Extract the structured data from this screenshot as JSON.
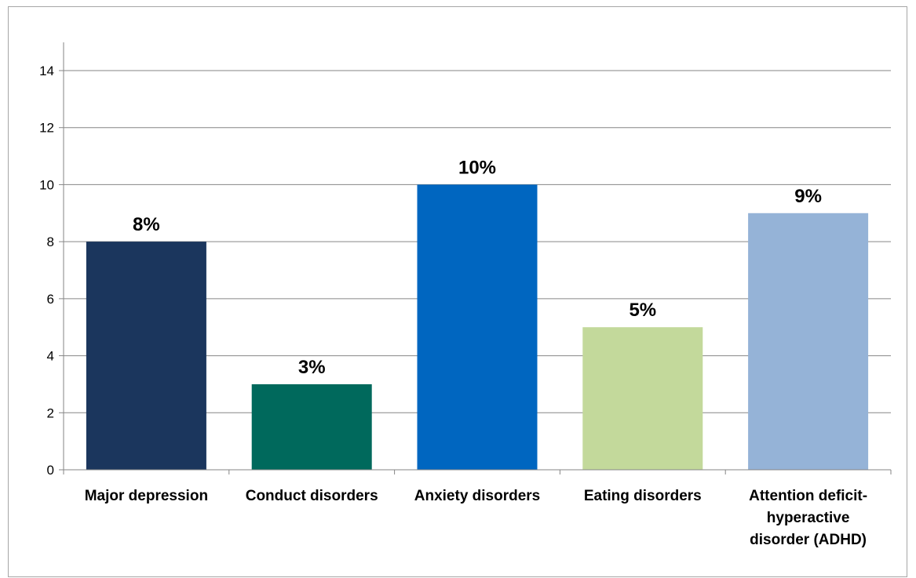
{
  "chart_data": {
    "type": "bar",
    "title": "",
    "xlabel": "",
    "ylabel": "",
    "ylim": [
      0,
      14
    ],
    "yticks": [
      0,
      2,
      4,
      6,
      8,
      10,
      12,
      14
    ],
    "grid": true,
    "legend": "none",
    "categories": [
      "Major depression",
      "Conduct disorders",
      "Anxiety disorders",
      "Eating disorders",
      "Attention deficit-hyperactive disorder (ADHD)"
    ],
    "category_label_lines": [
      [
        "Major depression"
      ],
      [
        "Conduct disorders"
      ],
      [
        "Anxiety disorders"
      ],
      [
        "Eating disorders"
      ],
      [
        "Attention deficit-",
        "hyperactive",
        "disorder (ADHD)"
      ]
    ],
    "values": [
      8,
      3,
      10,
      5,
      9
    ],
    "data_labels": [
      "8%",
      "3%",
      "10%",
      "5%",
      "9%"
    ],
    "colors": [
      "#1b365d",
      "#00695c",
      "#0066c0",
      "#c3d99b",
      "#95b3d7"
    ],
    "gridline_color": "#868686",
    "axis_color": "#868686"
  }
}
